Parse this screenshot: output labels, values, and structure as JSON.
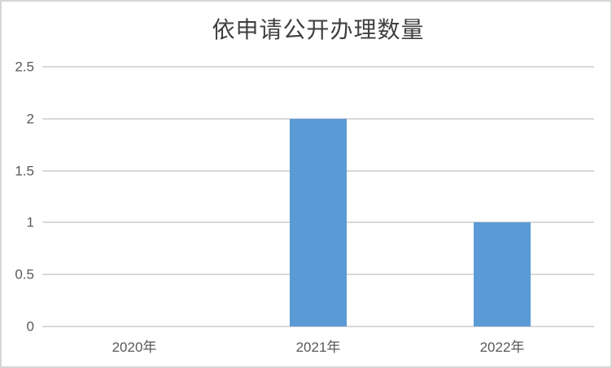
{
  "colors": {
    "bar": "#5B9BD5",
    "gridline": "#D9D9D9",
    "axis_label_text": "#595959",
    "title_text": "#404040",
    "frame_border": "#D6D6D6",
    "background": "#FFFFFF"
  },
  "chart_data": {
    "type": "bar",
    "title": "依申请公开办理数量",
    "categories": [
      "2020年",
      "2021年",
      "2022年"
    ],
    "values": [
      0,
      2,
      1
    ],
    "xlabel": "",
    "ylabel": "",
    "ylim": [
      0,
      2.5
    ],
    "yticks": [
      0,
      0.5,
      1,
      1.5,
      2,
      2.5
    ],
    "ytick_labels": [
      "0",
      "0.5",
      "1",
      "1.5",
      "2",
      "2.5"
    ],
    "grid": true,
    "legend": "none",
    "data_labels": false
  }
}
